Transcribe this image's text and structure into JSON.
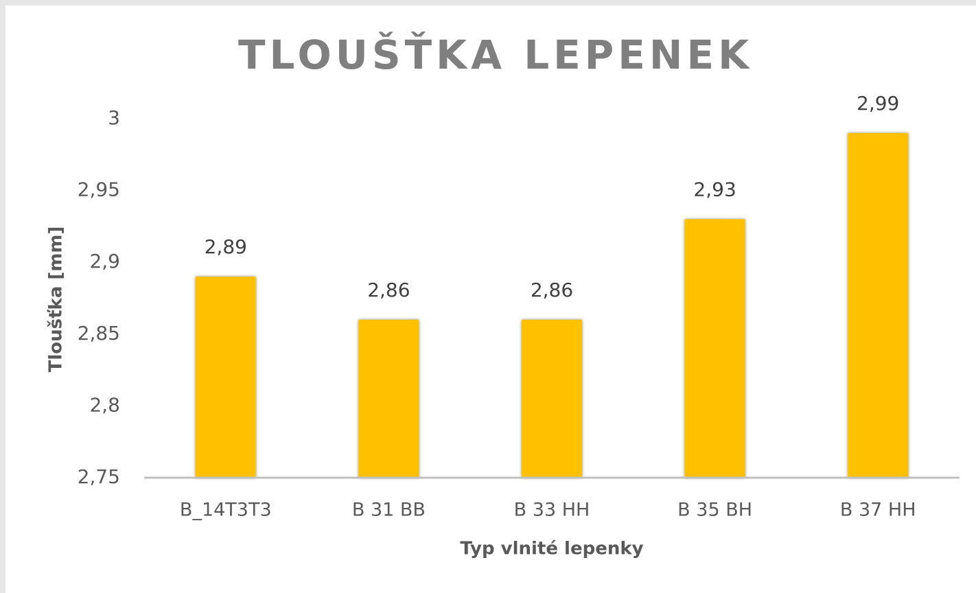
{
  "chart_data": {
    "type": "bar",
    "title": "TLOUŠŤKA LEPENEK",
    "x_label": "Typ vlnité lepenky",
    "y_label": "Tloušťka [mm]",
    "categories": [
      "B_14T3T3",
      "B 31 BB",
      "B 33 HH",
      "B 35 BH",
      "B 37 HH"
    ],
    "values": [
      2.89,
      2.86,
      2.86,
      2.93,
      2.99
    ],
    "value_labels": [
      "2,89",
      "2,86",
      "2,86",
      "2,93",
      "2,99"
    ],
    "color": "#ffc000",
    "ylim": [
      2.75,
      3
    ],
    "yticks": [
      {
        "value": 2.75,
        "label": "2,75"
      },
      {
        "value": 2.8,
        "label": "2,8"
      },
      {
        "value": 2.85,
        "label": "2,85"
      },
      {
        "value": 2.9,
        "label": "2,9"
      },
      {
        "value": 2.95,
        "label": "2,95"
      },
      3
    ],
    "grid": false
  }
}
